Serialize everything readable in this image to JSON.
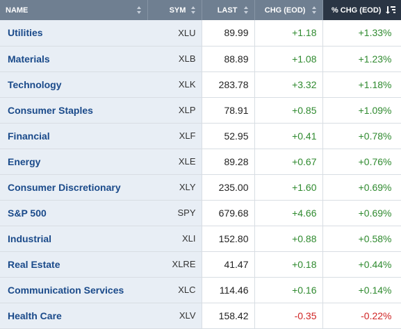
{
  "header": {
    "name": "NAME",
    "sym": "SYM",
    "last": "LAST",
    "chg": "CHG (EOD)",
    "pct": "% CHG (EOD)"
  },
  "colors": {
    "header_bg": "#6f7f91",
    "header_active_bg": "#2a3544",
    "name_link": "#1a4a8a",
    "positive": "#2f8a2f",
    "negative": "#d02424",
    "label_col_bg": "#e8eef5"
  },
  "sort": {
    "column": "pct",
    "direction": "descending",
    "icon": "sort-descending-icon"
  },
  "rows": [
    {
      "name": "Utilities",
      "sym": "XLU",
      "last": "89.99",
      "chg": "+1.18",
      "pct": "+1.33%",
      "dir": "pos"
    },
    {
      "name": "Materials",
      "sym": "XLB",
      "last": "88.89",
      "chg": "+1.08",
      "pct": "+1.23%",
      "dir": "pos"
    },
    {
      "name": "Technology",
      "sym": "XLK",
      "last": "283.78",
      "chg": "+3.32",
      "pct": "+1.18%",
      "dir": "pos"
    },
    {
      "name": "Consumer Staples",
      "sym": "XLP",
      "last": "78.91",
      "chg": "+0.85",
      "pct": "+1.09%",
      "dir": "pos"
    },
    {
      "name": "Financial",
      "sym": "XLF",
      "last": "52.95",
      "chg": "+0.41",
      "pct": "+0.78%",
      "dir": "pos"
    },
    {
      "name": "Energy",
      "sym": "XLE",
      "last": "89.28",
      "chg": "+0.67",
      "pct": "+0.76%",
      "dir": "pos"
    },
    {
      "name": "Consumer Discretionary",
      "sym": "XLY",
      "last": "235.00",
      "chg": "+1.60",
      "pct": "+0.69%",
      "dir": "pos"
    },
    {
      "name": "S&P 500",
      "sym": "SPY",
      "last": "679.68",
      "chg": "+4.66",
      "pct": "+0.69%",
      "dir": "pos"
    },
    {
      "name": "Industrial",
      "sym": "XLI",
      "last": "152.80",
      "chg": "+0.88",
      "pct": "+0.58%",
      "dir": "pos"
    },
    {
      "name": "Real Estate",
      "sym": "XLRE",
      "last": "41.47",
      "chg": "+0.18",
      "pct": "+0.44%",
      "dir": "pos"
    },
    {
      "name": "Communication Services",
      "sym": "XLC",
      "last": "114.46",
      "chg": "+0.16",
      "pct": "+0.14%",
      "dir": "pos"
    },
    {
      "name": "Health Care",
      "sym": "XLV",
      "last": "158.42",
      "chg": "-0.35",
      "pct": "-0.22%",
      "dir": "neg"
    }
  ]
}
